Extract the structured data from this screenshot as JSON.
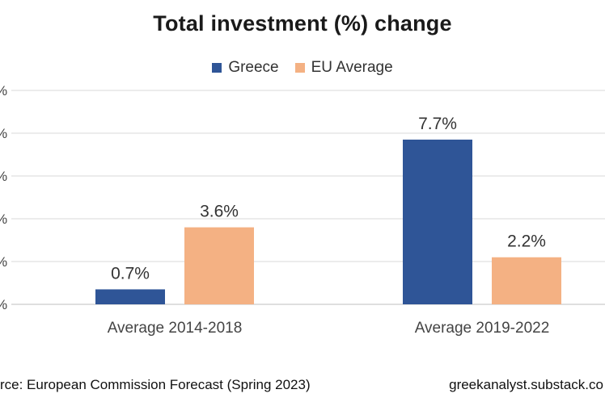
{
  "chart_data": {
    "type": "bar",
    "title": "Total investment (%) change",
    "categories": [
      "Average 2014-2018",
      "Average 2019-2022"
    ],
    "series": [
      {
        "name": "Greece",
        "values": [
          0.7,
          7.7
        ],
        "labels": [
          "0.7%",
          "7.7%"
        ],
        "color": "#2f5597"
      },
      {
        "name": "EU Average",
        "values": [
          3.6,
          2.2
        ],
        "labels": [
          "3.6%",
          "2.2%"
        ],
        "color": "#f4b183"
      }
    ],
    "ytick_labels": [
      "%",
      "%",
      "%",
      "%",
      "%",
      "%"
    ],
    "ylim": [
      0,
      10
    ],
    "grid": "horizontal",
    "legend_position": "top"
  },
  "footer": {
    "source": "rce: European Commission Forecast (Spring 2023)",
    "credit": "greekanalyst.substack.co"
  }
}
